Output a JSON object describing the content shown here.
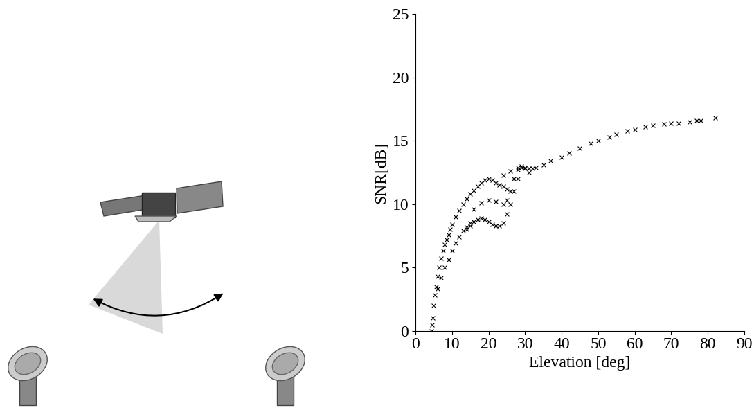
{
  "chart_data": {
    "type": "scatter",
    "x_label": "Elevation [deg]",
    "y_label": "SNR[dB]",
    "x": [
      4.3,
      4.5,
      4.7,
      5.0,
      5.3,
      5.6,
      6.0,
      6.5,
      7.0,
      7.5,
      8.0,
      8.5,
      9.0,
      9.5,
      10.0,
      11.0,
      12.0,
      13.0,
      14.0,
      15.0,
      16.0,
      17.0,
      18.0,
      19.0,
      20.0,
      21.0,
      22.0,
      23.0,
      24.0,
      25.0,
      6.0,
      7.0,
      8.0,
      9.0,
      10.0,
      11.0,
      12.0,
      13.0,
      14.0,
      15.0,
      14.0,
      15.0,
      16.0,
      17.0,
      18.0,
      19.0,
      20.0,
      21.0,
      22.0,
      23.0,
      24.0,
      25.0,
      26.0,
      27.0,
      28.0,
      16.0,
      18.0,
      20.0,
      22.0,
      24.0,
      25.0,
      26.0,
      27.0,
      28.0,
      29.0,
      30.0,
      31.0,
      24.0,
      26.0,
      28.0,
      29.0,
      30.0,
      31.0,
      32.0,
      33.0,
      35.0,
      37.0,
      40.0,
      42.0,
      45.0,
      48.0,
      50.0,
      53.0,
      55.0,
      58.0,
      60.0,
      63.0,
      65.0,
      68.0,
      70.0,
      72.0,
      75.0,
      77.0,
      78.0,
      82.0
    ],
    "values": [
      0.0,
      0.5,
      1.0,
      2.0,
      2.8,
      3.5,
      4.3,
      5.0,
      5.7,
      6.3,
      6.8,
      7.2,
      7.6,
      8.0,
      8.4,
      9.0,
      9.5,
      10.0,
      10.4,
      10.8,
      11.1,
      11.4,
      11.7,
      11.9,
      12.0,
      11.9,
      11.7,
      11.5,
      11.4,
      11.2,
      3.3,
      4.2,
      5.0,
      5.6,
      6.3,
      6.9,
      7.4,
      7.9,
      8.2,
      8.5,
      8.0,
      8.3,
      8.6,
      8.8,
      8.9,
      8.8,
      8.6,
      8.4,
      8.3,
      8.3,
      8.5,
      9.2,
      10.0,
      11.0,
      12.0,
      9.6,
      10.1,
      10.3,
      10.2,
      10.0,
      10.3,
      11.0,
      12.0,
      12.7,
      12.9,
      12.8,
      12.5,
      12.3,
      12.6,
      12.9,
      13.0,
      12.9,
      12.8,
      12.8,
      12.9,
      13.1,
      13.4,
      13.7,
      14.0,
      14.4,
      14.8,
      15.0,
      15.3,
      15.5,
      15.8,
      15.9,
      16.1,
      16.2,
      16.3,
      16.4,
      16.4,
      16.5,
      16.6,
      16.6,
      16.8
    ],
    "xlim": [
      0,
      90
    ],
    "xticks": [
      0,
      10,
      20,
      30,
      40,
      50,
      60,
      70,
      80,
      90
    ],
    "ylim": [
      0,
      25
    ],
    "yticks": [
      0,
      5,
      10,
      15,
      20,
      25
    ],
    "color": "#000000",
    "marker": "x"
  }
}
